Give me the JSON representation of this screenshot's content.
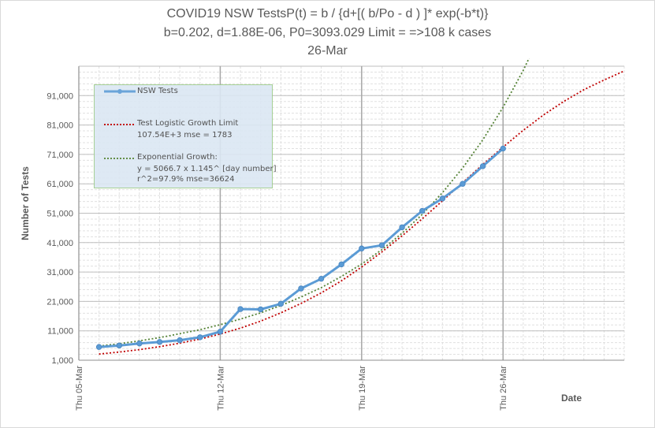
{
  "title": {
    "line1": "COVID19  NSW TestsP(t) = b / {d+[( b/Po - d ) ]* exp(-b*t)}",
    "line2": "b=0.202, d=1.88E-06, P0=3093.029 Limit = =>108 k cases",
    "line3": "26-Mar"
  },
  "chart_data": {
    "type": "line",
    "ylabel": "Number of Tests",
    "xlabel": "Date",
    "ylim": [
      1000,
      101000
    ],
    "y_ticks": [
      "1,000",
      "11,000",
      "21,000",
      "31,000",
      "41,000",
      "51,000",
      "61,000",
      "71,000",
      "81,000",
      "91,000"
    ],
    "x_ticks": [
      "Thu 05-Mar",
      "Thu 12-Mar",
      "Thu 19-Mar",
      "Thu 26-Mar"
    ],
    "x_range_days": [
      0,
      27
    ],
    "grid": "major and minor",
    "series": [
      {
        "name": "NSW Tests",
        "style": "solid-marker",
        "color": "#5b9bd5",
        "x": [
          1,
          2,
          3,
          4,
          5,
          6,
          7,
          8,
          9,
          10,
          11,
          12,
          13,
          14,
          15,
          16,
          17,
          18,
          19,
          20,
          21
        ],
        "values": [
          5500,
          6000,
          6700,
          7200,
          7800,
          8800,
          10700,
          18400,
          18300,
          20200,
          25400,
          28700,
          33600,
          39000,
          40100,
          46200,
          51800,
          56000,
          61000,
          67000,
          73000
        ]
      },
      {
        "name": "Test Logistic Growth Limit",
        "detail": [
          "107.54E+3 mse = 1783"
        ],
        "style": "dotted",
        "color": "#c00000",
        "x": [
          1,
          2,
          3,
          4,
          5,
          6,
          7,
          8,
          9,
          10,
          11,
          12,
          13,
          14,
          15,
          16,
          17,
          18,
          19,
          20,
          21,
          22,
          23,
          24,
          25,
          26,
          27
        ],
        "values": [
          3100,
          3800,
          4600,
          5600,
          6800,
          8200,
          9900,
          11900,
          14300,
          17100,
          20300,
          23900,
          28000,
          32700,
          37800,
          43300,
          49100,
          55200,
          61400,
          67600,
          73500,
          79200,
          84400,
          89000,
          93000,
          96300,
          99400
        ]
      },
      {
        "name": "Exponential Growth:",
        "detail": [
          "y = 5066.7 x 1.145^ [day number]",
          "r^2=97.9% mse=36624"
        ],
        "style": "dotted",
        "color": "#548235",
        "x": [
          1,
          2,
          3,
          4,
          5,
          6,
          7,
          8,
          9,
          10,
          11,
          12,
          13,
          14,
          15,
          16,
          17,
          18,
          19,
          20,
          21,
          22,
          23
        ],
        "values": [
          5800,
          6600,
          7600,
          8700,
          10000,
          11400,
          13100,
          15000,
          17100,
          19600,
          22500,
          25700,
          29500,
          33700,
          38600,
          44200,
          50600,
          58000,
          66400,
          76000,
          87000,
          99600,
          114000
        ]
      }
    ]
  }
}
